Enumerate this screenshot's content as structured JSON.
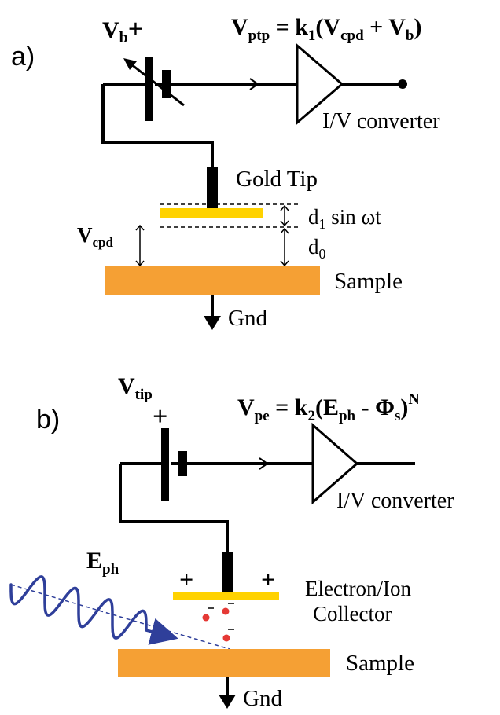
{
  "colors": {
    "sample": "#f5a034",
    "tip_plate": "#ffd200",
    "wave": "#2f3f9a",
    "charge": "#e53935",
    "line": "#000000"
  },
  "panel_a": {
    "label": "a)",
    "bias_main": "V",
    "bias_sub": "b",
    "bias_sign": "+",
    "eq_lhs": "V",
    "eq_lhs_sub": "ptp",
    "eq_eq": " = k",
    "eq_k_sub": "1",
    "eq_open": "(V",
    "eq_cpd_sub": "cpd",
    "eq_plus": " + V",
    "eq_b_sub": "b",
    "eq_close": ")",
    "converter": "I/V converter",
    "tip": "Gold Tip",
    "osc_main": "d",
    "osc_sub": "1",
    "osc_rest": " sin ωt",
    "gap_main": "d",
    "gap_sub": "0",
    "vcpd_main": "V",
    "vcpd_sub": "cpd",
    "sample": "Sample",
    "gnd": "Gnd"
  },
  "panel_b": {
    "label": "b)",
    "vtip_main": "V",
    "vtip_sub": "tip",
    "vtip_sign": "+",
    "eq_lhs": "V",
    "eq_lhs_sub": "pe",
    "eq_eq": " = k",
    "eq_k_sub": "2",
    "eq_open": "(E",
    "eq_ph_sub": "ph",
    "eq_minus": " - Φ",
    "eq_s_sub": "s",
    "eq_close": ")",
    "eq_exp": "N",
    "converter": "I/V converter",
    "eph_main": "E",
    "eph_sub": "ph",
    "plus_left": "+",
    "plus_right": "+",
    "collector_line1": "Electron/Ion",
    "collector_line2": "Collector",
    "sample": "Sample",
    "gnd": "Gnd"
  }
}
